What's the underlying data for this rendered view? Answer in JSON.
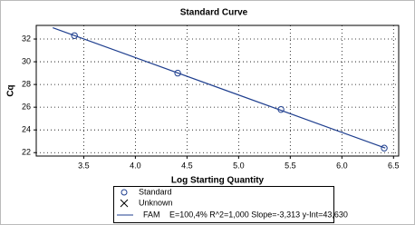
{
  "chart_data": {
    "type": "scatter",
    "title": "Standard Curve",
    "x_label": "Log Starting Quantity",
    "y_label": "Cq",
    "xlim": [
      3.04,
      6.55
    ],
    "ylim": [
      21.7,
      33.2
    ],
    "xticks": [
      3.5,
      {
        "value": 4,
        "label": "4.0"
      },
      4.5,
      {
        "value": 5,
        "label": "5.0"
      },
      5.5,
      {
        "value": 6,
        "label": "6.0"
      },
      6.5
    ],
    "yticks": [
      22,
      24,
      26,
      28,
      30,
      32
    ],
    "grid": true,
    "series": [
      {
        "name": "Standard",
        "color": "#1f3f8f",
        "x": [
          3.41,
          4.41,
          5.41,
          6.41
        ],
        "values": [
          32.3,
          29.0,
          25.8,
          22.4
        ]
      },
      {
        "name": "Unknown",
        "color": "#000000",
        "x": [],
        "values": []
      },
      {
        "name": "FAM",
        "color": "#1f3f8f",
        "x": [
          3.2,
          6.42
        ],
        "values": [
          33.0,
          22.4
        ],
        "fit": "E=100,4% R^2=1,000 Slope=-3,313 y-Int=43,630"
      }
    ]
  }
}
